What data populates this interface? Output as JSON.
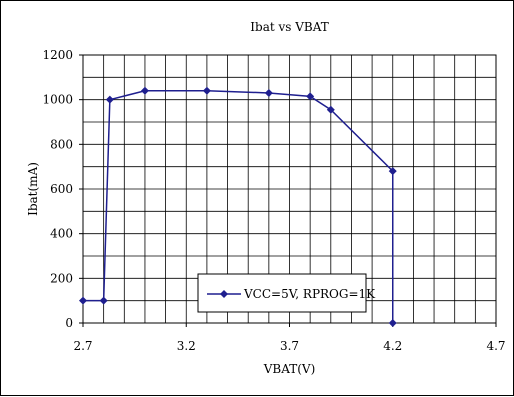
{
  "chart_data": {
    "type": "line",
    "title": "Ibat vs VBAT",
    "xlabel": "VBAT(V)",
    "ylabel": "Ibat(mA)",
    "xlim": [
      2.7,
      4.7
    ],
    "ylim": [
      0,
      1200
    ],
    "x_ticks": [
      "2.7",
      "3.2",
      "3.7",
      "4.2",
      "4.7"
    ],
    "y_ticks": [
      "0",
      "200",
      "400",
      "600",
      "800",
      "1000",
      "1200"
    ],
    "x_grid_step": 0.1,
    "y_grid_step": 100,
    "grid": true,
    "legend_position": "bottom-center",
    "series_color": "#1f1f8f",
    "series": [
      {
        "name": "VCC=5V, RPROG=1K",
        "x": [
          2.7,
          2.8,
          2.83,
          3.0,
          3.3,
          3.6,
          3.8,
          3.9,
          4.2,
          4.2
        ],
        "y": [
          100,
          100,
          1000,
          1040,
          1040,
          1030,
          1015,
          955,
          680,
          0
        ]
      }
    ]
  }
}
